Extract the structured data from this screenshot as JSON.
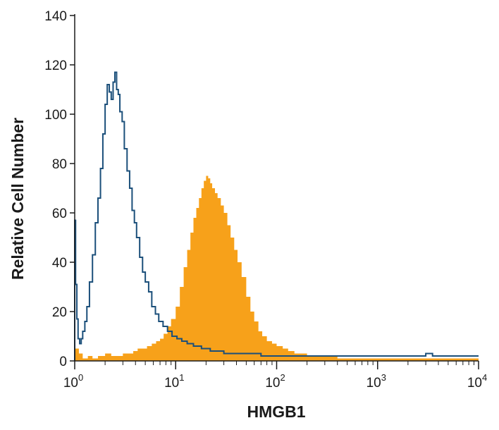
{
  "chart_data": {
    "type": "area",
    "title": "",
    "xlabel": "HMGB1",
    "ylabel": "Relative Cell Number",
    "x_scale": "log",
    "xlim": [
      1,
      10000
    ],
    "ylim": [
      0,
      140
    ],
    "y_ticks": [
      0,
      20,
      40,
      60,
      80,
      100,
      120,
      140
    ],
    "x_ticks": [
      {
        "base": "10",
        "exp": "0",
        "value": 1
      },
      {
        "base": "10",
        "exp": "1",
        "value": 10
      },
      {
        "base": "10",
        "exp": "2",
        "value": 100
      },
      {
        "base": "10",
        "exp": "3",
        "value": 1000
      },
      {
        "base": "10",
        "exp": "4",
        "value": 10000
      }
    ],
    "grid": false,
    "legend": "none",
    "colors": {
      "filled": "#f7a11a",
      "outline": "#1b4f7a",
      "axis": "#1a1a1a"
    },
    "series": [
      {
        "style": "filled",
        "x": [
          1.0,
          1.1,
          1.2,
          1.35,
          1.5,
          1.7,
          2.0,
          2.3,
          2.6,
          3.0,
          3.4,
          3.8,
          4.2,
          4.7,
          5.2,
          5.8,
          6.4,
          7.0,
          7.6,
          8.3,
          9.0,
          10.0,
          11.0,
          12.0,
          13.0,
          14.0,
          15.0,
          16.0,
          17.0,
          18.0,
          19.0,
          20.0,
          21.0,
          22.0,
          23.0,
          24.5,
          26.0,
          28.0,
          30.0,
          32.5,
          35.0,
          38.0,
          41.0,
          45.0,
          50.0,
          55.0,
          60.0,
          66.0,
          72.0,
          80.0,
          90.0,
          100.0,
          115.0,
          130.0,
          150.0,
          175.0,
          200.0,
          250.0,
          300.0,
          400.0,
          600.0,
          1000.0,
          2000.0,
          4000.0,
          10000.0
        ],
        "y": [
          5,
          3,
          1,
          2,
          1,
          2,
          3,
          2,
          2,
          3,
          3,
          4,
          5,
          5,
          6,
          7,
          8,
          9,
          11,
          14,
          17,
          22,
          30,
          38,
          45,
          52,
          58,
          62,
          66,
          70,
          73,
          75,
          74,
          72,
          70,
          68,
          66,
          63,
          60,
          55,
          50,
          45,
          40,
          34,
          26,
          20,
          16,
          12,
          10,
          8,
          7,
          6,
          5,
          4,
          3,
          3,
          2,
          2,
          2,
          1,
          1,
          1,
          1,
          1,
          1
        ]
      },
      {
        "style": "outline",
        "x": [
          1.0,
          1.02,
          1.05,
          1.08,
          1.12,
          1.16,
          1.2,
          1.26,
          1.32,
          1.4,
          1.5,
          1.6,
          1.7,
          1.8,
          1.9,
          2.0,
          2.1,
          2.2,
          2.3,
          2.4,
          2.5,
          2.6,
          2.7,
          2.8,
          2.95,
          3.1,
          3.3,
          3.5,
          3.7,
          3.9,
          4.1,
          4.4,
          4.7,
          5.0,
          5.4,
          5.8,
          6.3,
          6.8,
          7.5,
          8.3,
          9.2,
          10.3,
          11.5,
          13.0,
          15.0,
          18.0,
          22.0,
          30.0,
          45.0,
          70.0,
          120.0,
          200.0,
          400.0,
          800.0,
          1500.0,
          3000.0,
          3500.0,
          4000.0,
          10000.0
        ],
        "y": [
          57,
          31,
          17,
          9,
          7,
          9,
          12,
          16,
          22,
          32,
          43,
          56,
          66,
          78,
          92,
          104,
          112,
          109,
          106,
          113,
          117,
          110,
          108,
          101,
          97,
          86,
          77,
          70,
          61,
          56,
          50,
          42,
          36,
          32,
          28,
          22,
          19,
          16,
          14,
          12,
          10,
          9,
          8,
          7,
          6,
          5,
          4,
          3,
          3,
          2,
          2,
          2,
          2,
          2,
          2,
          3,
          2,
          2,
          2
        ]
      }
    ]
  }
}
